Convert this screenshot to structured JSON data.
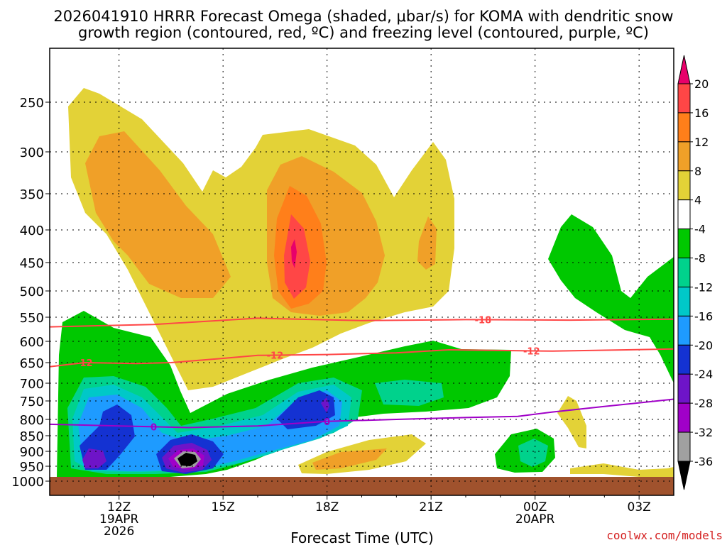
{
  "chart_data": {
    "type": "contour",
    "title_line1": "2026041910 HRRR Forecast Omega (shaded, μbar/s) for KOMA with dendritic snow",
    "title_line2": "growth region (contoured, red, ºC) and freezing level (contoured, purple, ºC)",
    "xlabel": "Forecast Time (UTC)",
    "watermark": "coolwx.com/models",
    "x_ticks": [
      {
        "hour": 12,
        "label": "12Z",
        "sub1": "19APR",
        "sub2": "2026"
      },
      {
        "hour": 15,
        "label": "15Z",
        "sub1": "",
        "sub2": ""
      },
      {
        "hour": 18,
        "label": "18Z",
        "sub1": "",
        "sub2": ""
      },
      {
        "hour": 21,
        "label": "21Z",
        "sub1": "",
        "sub2": ""
      },
      {
        "hour": 24,
        "label": "00Z",
        "sub1": "20APR",
        "sub2": ""
      },
      {
        "hour": 27,
        "label": "03Z",
        "sub1": "",
        "sub2": ""
      }
    ],
    "xlim_hours": [
      10,
      28
    ],
    "y_levels": [
      "250",
      "300",
      "350",
      "400",
      "450",
      "500",
      "550",
      "600",
      "650",
      "700",
      "750",
      "800",
      "850",
      "900",
      "950",
      "1000"
    ],
    "y_unit": "hPa",
    "ylim_hpa": [
      1000,
      200
    ],
    "colorbar": {
      "labels": [
        "20",
        "16",
        "12",
        "8",
        "4",
        "-4",
        "-8",
        "-12",
        "-16",
        "-20",
        "-24",
        "-28",
        "-32",
        "-36"
      ],
      "colors": [
        "#e8006a",
        "#ff4646",
        "#ff7f1a",
        "#f0a028",
        "#e3d237",
        "#ffffff",
        "#00c800",
        "#00d28c",
        "#00c8c8",
        "#1e9bff",
        "#1432d2",
        "#6e14c8",
        "#a000c8",
        "#a0a0a0",
        "#000000"
      ]
    },
    "contours": [
      {
        "name": "-18",
        "color": "#ff4646",
        "label": "-18",
        "hours": [
          10,
          13,
          16,
          19,
          22,
          25,
          28
        ],
        "hpa": [
          570,
          565,
          552,
          557,
          555,
          556,
          554
        ]
      },
      {
        "name": "-12",
        "color": "#ff4646",
        "label": "-12",
        "hours": [
          10,
          11,
          12.5,
          13.5,
          15,
          16,
          18,
          20,
          21.5,
          24.5,
          28
        ],
        "hpa": [
          660,
          650,
          652,
          650,
          640,
          633,
          631,
          627,
          620,
          623,
          618
        ]
      },
      {
        "name": "0",
        "color": "#a000c8",
        "label": "0",
        "hours": [
          10,
          12,
          14,
          16,
          18,
          20,
          22,
          23.5,
          24.5,
          26,
          28
        ],
        "hpa": [
          815,
          820,
          825,
          820,
          806,
          800,
          795,
          792,
          780,
          765,
          745
        ]
      }
    ]
  }
}
